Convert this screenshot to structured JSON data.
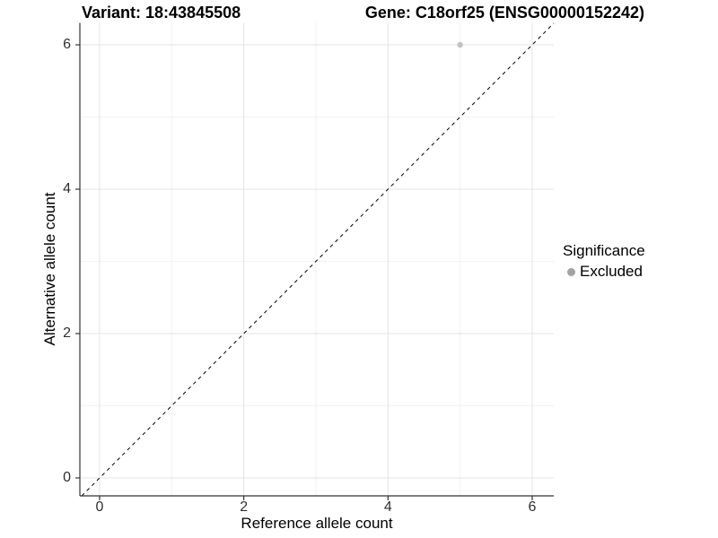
{
  "header": {
    "variant_title": "Variant: 18:43845508",
    "gene_title": "Gene: C18orf25 (ENSG00000152242)"
  },
  "legend": {
    "title": "Significance",
    "items": [
      {
        "label": "Excluded",
        "color": "#a3a3a3"
      }
    ]
  },
  "colors": {
    "background": "#ffffff",
    "grid_major": "#e4e4e4",
    "grid_minor": "#f2f2f2",
    "axis_line": "#333333",
    "tick_mark": "#333333",
    "reference_line": "#000000",
    "point": "#c3c3c3"
  },
  "chart_data": {
    "type": "scatter",
    "title": "Variant: 18:43845508 — Gene: C18orf25 (ENSG00000152242)",
    "xlabel": "Reference allele count",
    "ylabel": "Alternative allele count",
    "x_ticks": [
      0,
      2,
      4,
      6
    ],
    "y_ticks": [
      0,
      2,
      4,
      6
    ],
    "x_minor_ticks": [
      1,
      3,
      5
    ],
    "y_minor_ticks": [
      1,
      3,
      5
    ],
    "xlim": [
      -0.27,
      6.3
    ],
    "ylim": [
      -0.25,
      6.3
    ],
    "grid": true,
    "legend_position": "right",
    "series": [
      {
        "name": "Excluded",
        "color": "#c3c3c3",
        "points": [
          {
            "x": 5,
            "y": 6
          }
        ]
      }
    ],
    "reference_line": {
      "slope": 1,
      "intercept": 0,
      "style": "dashed"
    }
  }
}
